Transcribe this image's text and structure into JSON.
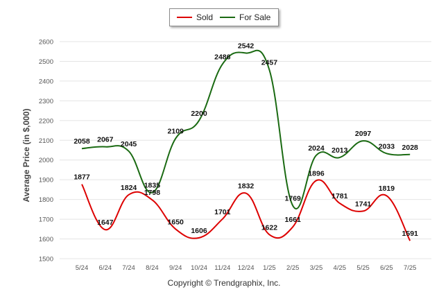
{
  "chart_data": {
    "type": "line",
    "categories": [
      "5/24",
      "6/24",
      "7/24",
      "8/24",
      "9/24",
      "10/24",
      "11/24",
      "12/24",
      "1/25",
      "2/25",
      "3/25",
      "4/25",
      "5/25",
      "6/25",
      "7/25"
    ],
    "series": [
      {
        "name": "Sold",
        "color": "#dd0000",
        "values": [
          1877,
          1647,
          1824,
          1798,
          1650,
          1606,
          1701,
          1832,
          1622,
          1661,
          1896,
          1781,
          1741,
          1819,
          1591
        ]
      },
      {
        "name": "For Sale",
        "color": "#1a6a12",
        "values": [
          2058,
          2067,
          2045,
          1835,
          2109,
          2200,
          2486,
          2542,
          2457,
          1769,
          2024,
          2013,
          2097,
          2033,
          2028
        ]
      }
    ],
    "ylabel": "Average Price (in $,000)",
    "ylim": [
      1500,
      2600
    ],
    "yticks": [
      1500,
      1600,
      1700,
      1800,
      1900,
      2000,
      2100,
      2200,
      2300,
      2400,
      2500,
      2600
    ],
    "grid": true,
    "legend": "top-center"
  },
  "footer": {
    "copyright": "Copyright © Trendgraphix, Inc."
  }
}
